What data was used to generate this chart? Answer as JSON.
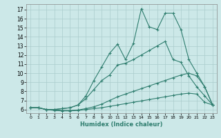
{
  "xlabel": "Humidex (Indice chaleur)",
  "bg_color": "#cce8e8",
  "line_color": "#2e7d6e",
  "grid_color": "#aacccc",
  "xlim": [
    -0.5,
    23.5
  ],
  "ylim": [
    5.6,
    17.6
  ],
  "xticks": [
    0,
    1,
    2,
    3,
    4,
    5,
    6,
    7,
    8,
    9,
    10,
    11,
    12,
    13,
    14,
    15,
    16,
    17,
    18,
    19,
    20,
    21,
    22,
    23
  ],
  "yticks": [
    6,
    7,
    8,
    9,
    10,
    11,
    12,
    13,
    14,
    15,
    16,
    17
  ],
  "series": [
    {
      "x": [
        0,
        1,
        2,
        3,
        4,
        5,
        6,
        7,
        8,
        9,
        10,
        11,
        12,
        13,
        14,
        15,
        16,
        17,
        18,
        19,
        20,
        21,
        22,
        23
      ],
      "y": [
        6.2,
        6.2,
        6.0,
        5.9,
        5.85,
        5.85,
        5.9,
        6.0,
        6.1,
        6.2,
        6.35,
        6.5,
        6.65,
        6.8,
        6.95,
        7.1,
        7.25,
        7.4,
        7.55,
        7.7,
        7.8,
        7.7,
        6.8,
        6.5
      ]
    },
    {
      "x": [
        0,
        1,
        2,
        3,
        4,
        5,
        6,
        7,
        8,
        9,
        10,
        11,
        12,
        13,
        14,
        15,
        16,
        17,
        18,
        19,
        20,
        21,
        22,
        23
      ],
      "y": [
        6.2,
        6.2,
        6.0,
        5.95,
        5.9,
        5.9,
        5.95,
        6.1,
        6.3,
        6.6,
        7.0,
        7.4,
        7.7,
        8.0,
        8.3,
        8.6,
        8.9,
        9.2,
        9.5,
        9.8,
        10.0,
        9.7,
        8.5,
        6.5
      ]
    },
    {
      "x": [
        0,
        1,
        2,
        3,
        4,
        5,
        6,
        7,
        8,
        9,
        10,
        11,
        12,
        13,
        14,
        15,
        16,
        17,
        18,
        19,
        20,
        21,
        22,
        23
      ],
      "y": [
        6.2,
        6.2,
        6.0,
        6.0,
        6.1,
        6.2,
        6.5,
        7.2,
        8.2,
        9.2,
        9.8,
        10.9,
        11.1,
        11.5,
        12.0,
        12.5,
        13.0,
        13.5,
        11.5,
        11.2,
        9.7,
        8.5,
        7.5,
        6.5
      ]
    },
    {
      "x": [
        0,
        1,
        2,
        3,
        4,
        5,
        6,
        7,
        8,
        9,
        10,
        11,
        12,
        13,
        14,
        15,
        16,
        17,
        18,
        19,
        20,
        21,
        22,
        23
      ],
      "y": [
        6.2,
        6.2,
        6.0,
        6.0,
        6.1,
        6.2,
        6.5,
        7.5,
        9.2,
        10.7,
        12.2,
        13.2,
        11.5,
        13.3,
        17.1,
        15.1,
        14.8,
        16.6,
        16.6,
        14.8,
        11.5,
        10.0,
        8.5,
        6.5
      ]
    }
  ]
}
